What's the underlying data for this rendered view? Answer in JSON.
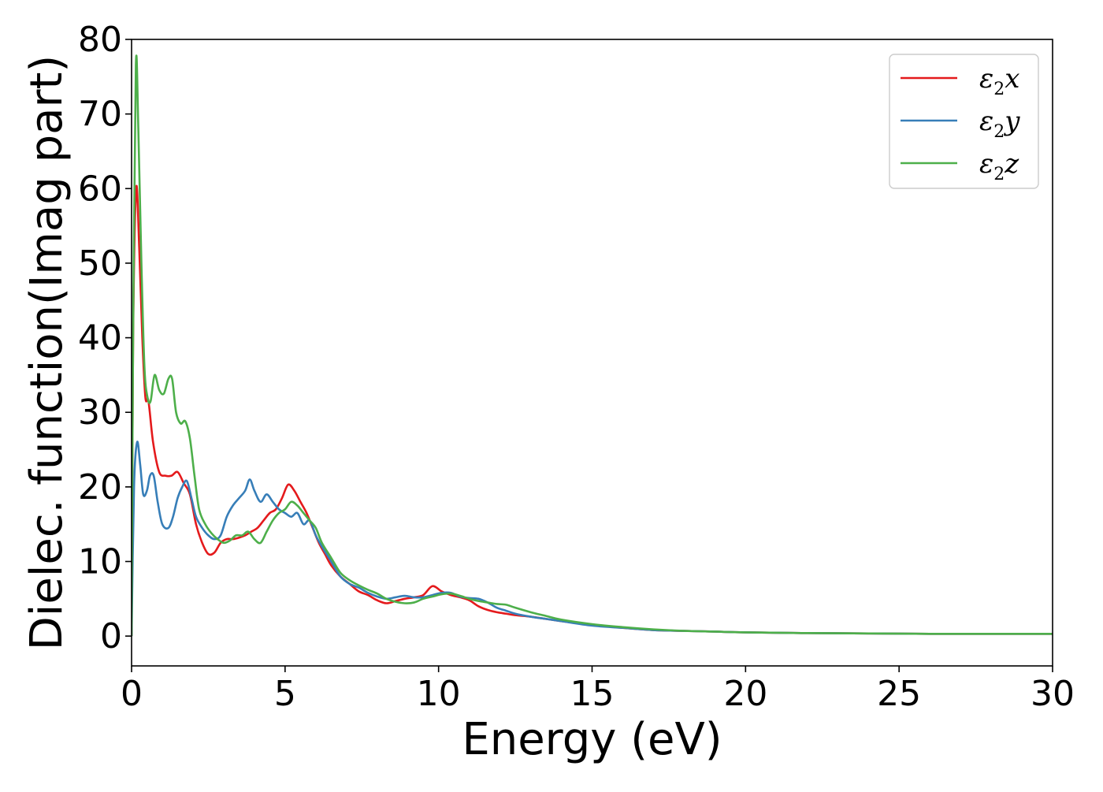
{
  "chart_data": {
    "type": "line",
    "title": "",
    "xlabel": "Energy (eV)",
    "ylabel": "Dielec. function(Imag part)",
    "xlim": [
      0,
      30
    ],
    "ylim": [
      -4,
      80
    ],
    "xticks": [
      0,
      5,
      10,
      15,
      20,
      25,
      30
    ],
    "yticks": [
      0,
      10,
      20,
      30,
      40,
      50,
      60,
      70,
      80
    ],
    "grid": false,
    "legend_position": "top-right",
    "series": [
      {
        "name": "ε2x",
        "legend_main": "ε",
        "legend_sub": "2",
        "legend_tail": "x",
        "color": "#e41a1c",
        "x": [
          0,
          0.05,
          0.15,
          0.25,
          0.35,
          0.45,
          0.55,
          0.7,
          0.9,
          1.1,
          1.3,
          1.5,
          1.7,
          1.9,
          2.1,
          2.3,
          2.5,
          2.7,
          2.9,
          3.1,
          3.3,
          3.5,
          3.7,
          3.9,
          4.1,
          4.3,
          4.5,
          4.7,
          4.9,
          5.1,
          5.3,
          5.5,
          5.7,
          5.9,
          6.1,
          6.3,
          6.5,
          6.8,
          7.1,
          7.4,
          7.7,
          8.0,
          8.3,
          8.6,
          8.9,
          9.2,
          9.5,
          9.8,
          10.1,
          10.4,
          10.7,
          11.0,
          11.3,
          11.6,
          11.9,
          12.2,
          12.5,
          13.0,
          13.5,
          14.0,
          15.0,
          16.0,
          17.0,
          18.0,
          19.0,
          20.0,
          22.0,
          24.0,
          26.0,
          28.0,
          30.0
        ],
        "y": [
          0,
          40,
          60,
          52,
          40,
          32,
          31.5,
          26,
          22,
          21.5,
          21.5,
          22,
          20.5,
          19,
          15,
          12.5,
          11,
          11.2,
          12.5,
          13,
          13,
          13.2,
          13.5,
          14,
          14.5,
          15.5,
          16.5,
          17,
          18.5,
          20.3,
          19.5,
          18,
          16.5,
          14.5,
          12.5,
          11,
          9.5,
          8,
          7,
          6,
          5.5,
          4.8,
          4.4,
          4.7,
          5,
          5.2,
          5.5,
          6.7,
          6,
          5.5,
          5.2,
          4.8,
          4,
          3.5,
          3.2,
          3,
          2.8,
          2.6,
          2.3,
          2.0,
          1.5,
          1.1,
          0.8,
          0.7,
          0.6,
          0.5,
          0.4,
          0.35,
          0.3,
          0.3,
          0.3
        ]
      },
      {
        "name": "ε2y",
        "legend_main": "ε",
        "legend_sub": "2",
        "legend_tail": "y",
        "color": "#377eb8",
        "x": [
          0,
          0.08,
          0.18,
          0.28,
          0.38,
          0.5,
          0.6,
          0.72,
          0.85,
          1.0,
          1.2,
          1.35,
          1.5,
          1.65,
          1.8,
          1.95,
          2.1,
          2.3,
          2.5,
          2.7,
          2.9,
          3.1,
          3.3,
          3.5,
          3.7,
          3.85,
          4.0,
          4.2,
          4.4,
          4.6,
          4.8,
          5.0,
          5.2,
          5.4,
          5.6,
          5.8,
          6.0,
          6.2,
          6.5,
          6.8,
          7.1,
          7.4,
          7.7,
          8.0,
          8.3,
          8.6,
          8.9,
          9.2,
          9.5,
          9.8,
          10.1,
          10.4,
          10.7,
          11.0,
          11.3,
          11.6,
          11.9,
          12.2,
          12.5,
          13.0,
          13.5,
          14.0,
          15.0,
          16.0,
          17.0,
          18.0,
          19.0,
          20.0,
          22.0,
          24.0,
          26.0,
          28.0,
          30.0
        ],
        "y": [
          0,
          20,
          26,
          23,
          19,
          19.5,
          21.5,
          21.5,
          18,
          15,
          14.5,
          16,
          18.5,
          20,
          20.8,
          18.5,
          16,
          14.5,
          13.5,
          13,
          13.5,
          16,
          17.5,
          18.5,
          19.5,
          21,
          19.5,
          18,
          19,
          18,
          17,
          16.5,
          16,
          16.5,
          15,
          15.5,
          13.5,
          12,
          10,
          8,
          7,
          6.5,
          5.8,
          5.3,
          5,
          5.2,
          5.4,
          5.2,
          5.2,
          5.5,
          5.8,
          5.8,
          5.3,
          5.1,
          5,
          4.5,
          3.8,
          3.4,
          3,
          2.6,
          2.3,
          2.0,
          1.4,
          1.1,
          0.8,
          0.7,
          0.6,
          0.5,
          0.4,
          0.35,
          0.3,
          0.3,
          0.3
        ]
      },
      {
        "name": "ε2z",
        "legend_main": "ε",
        "legend_sub": "2",
        "legend_tail": "z",
        "color": "#4daf4a",
        "x": [
          0,
          0.05,
          0.14,
          0.22,
          0.32,
          0.42,
          0.52,
          0.62,
          0.75,
          0.9,
          1.05,
          1.2,
          1.32,
          1.45,
          1.6,
          1.75,
          1.9,
          2.05,
          2.2,
          2.4,
          2.6,
          2.8,
          3.0,
          3.2,
          3.4,
          3.6,
          3.8,
          4.0,
          4.2,
          4.4,
          4.6,
          4.8,
          5.0,
          5.2,
          5.4,
          5.6,
          5.8,
          6.0,
          6.2,
          6.5,
          6.8,
          7.1,
          7.4,
          7.7,
          8.0,
          8.3,
          8.6,
          8.9,
          9.2,
          9.5,
          9.8,
          10.1,
          10.4,
          10.7,
          11.0,
          11.3,
          11.6,
          11.9,
          12.2,
          12.5,
          13.0,
          13.5,
          14.0,
          15.0,
          16.0,
          17.0,
          18.0,
          19.0,
          20.0,
          22.0,
          24.0,
          26.0,
          28.0,
          30.0
        ],
        "y": [
          0,
          40,
          76.5,
          68,
          50,
          36,
          32,
          31.5,
          35,
          33,
          32.5,
          34.5,
          34.5,
          30,
          28.5,
          28.8,
          26.5,
          21.5,
          17,
          15,
          13.8,
          13,
          12.5,
          12.8,
          13.5,
          13.5,
          14,
          13,
          12.5,
          14,
          15.5,
          16.5,
          17,
          18,
          17.5,
          16.5,
          15.5,
          14.5,
          12.5,
          10.5,
          8.5,
          7.5,
          6.8,
          6.2,
          5.7,
          5,
          4.6,
          4.4,
          4.5,
          5,
          5.3,
          5.6,
          5.7,
          5.4,
          5,
          4.7,
          4.5,
          4.3,
          4.2,
          3.8,
          3.2,
          2.7,
          2.2,
          1.6,
          1.2,
          0.9,
          0.7,
          0.6,
          0.5,
          0.4,
          0.35,
          0.3,
          0.3,
          0.3
        ]
      }
    ]
  }
}
